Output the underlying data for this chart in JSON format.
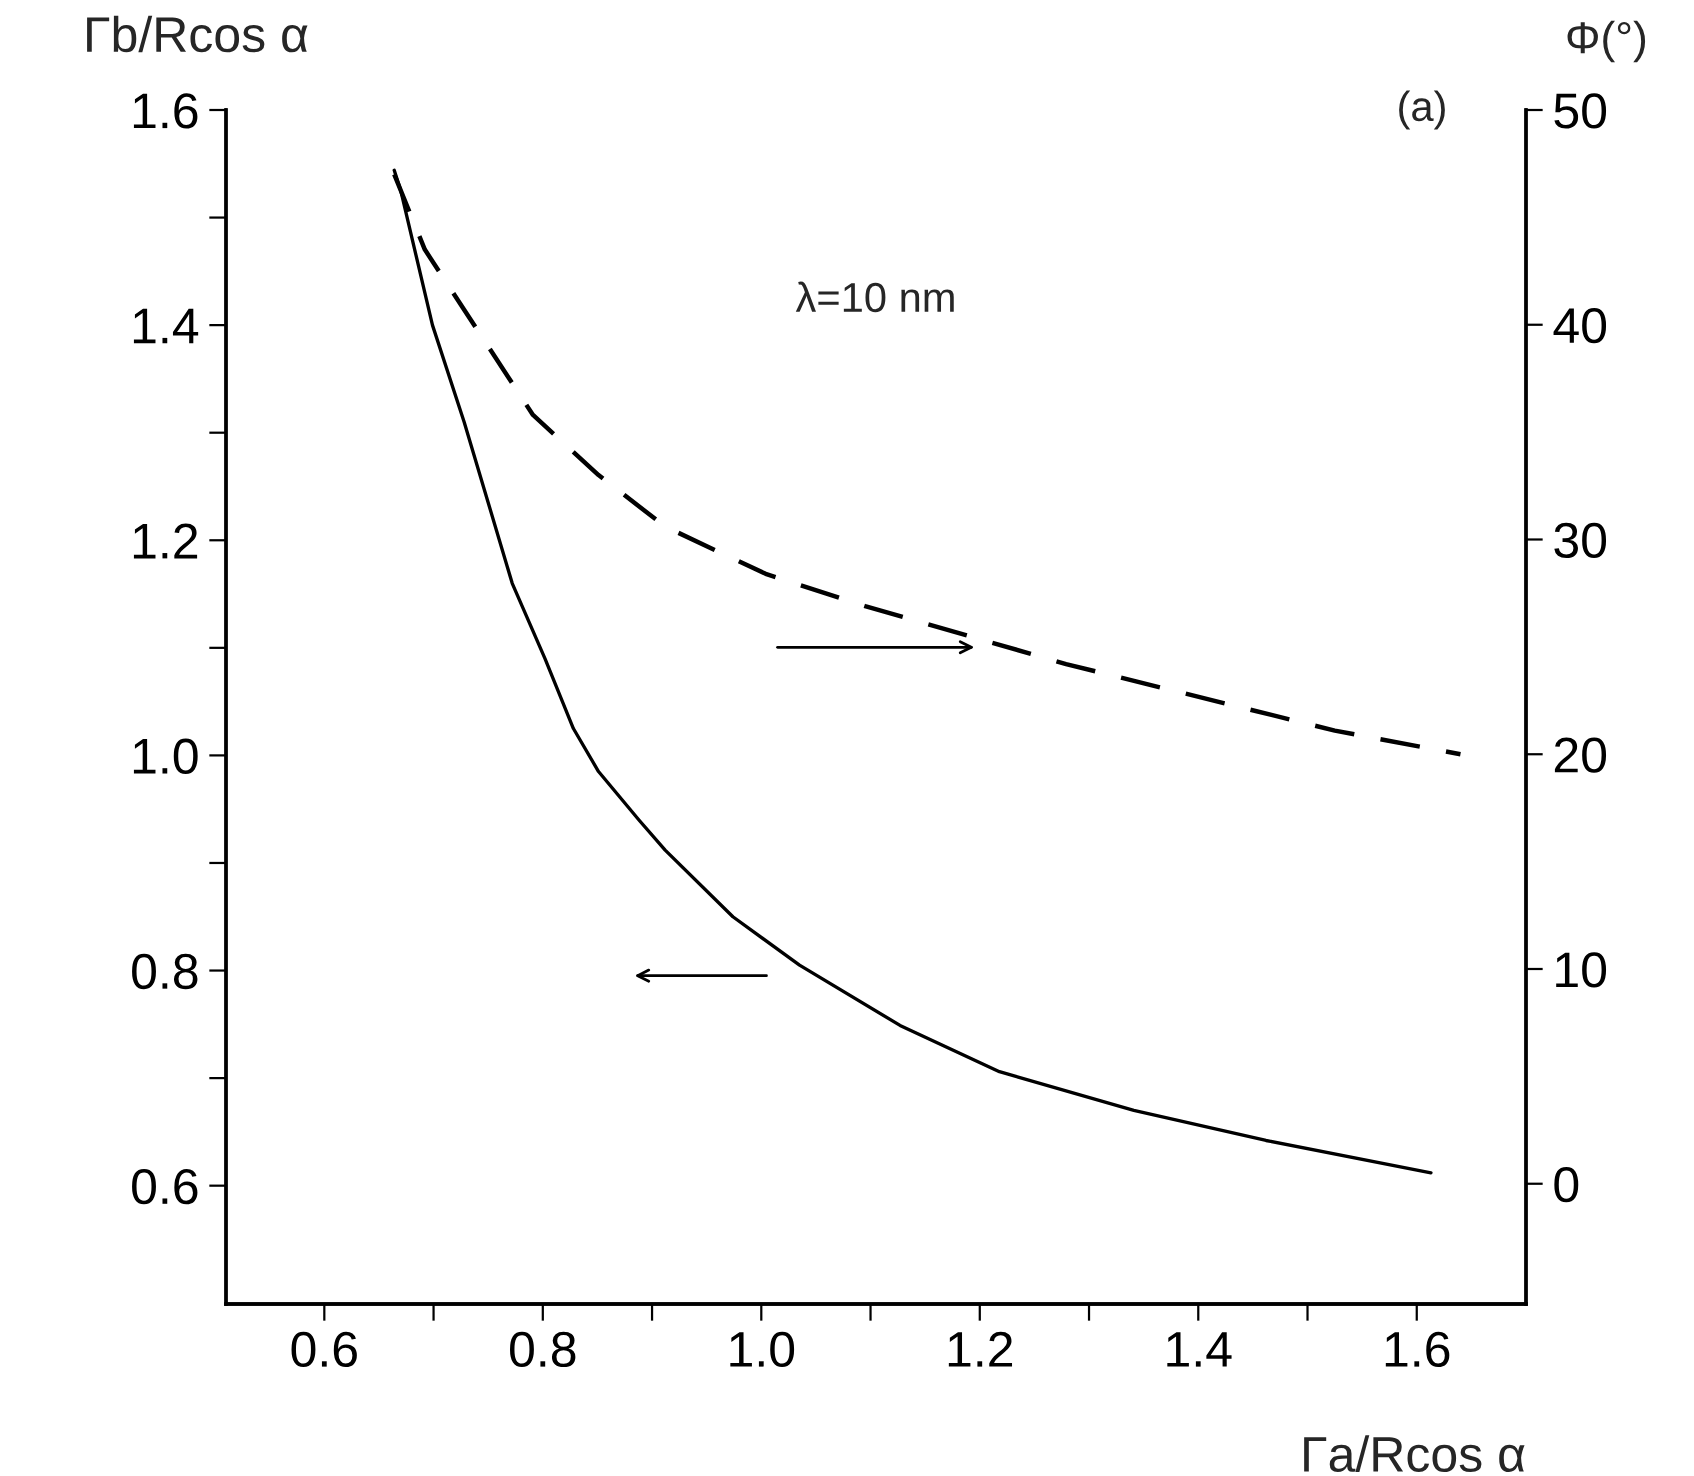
{
  "chart_data": {
    "type": "line",
    "xlabel": "Γa/Rcos α",
    "ylabel": "Γb/Rcos α",
    "y2label": "Φ(°)",
    "annotations": [
      "(a)",
      "λ=10 nm"
    ],
    "xlim": [
      0.51,
      1.7
    ],
    "ylim": [
      0.49,
      1.6
    ],
    "y2lim": [
      -5.6,
      50
    ],
    "xticks": [
      0.6,
      {
        "value": 0.7,
        "label": null
      },
      0.8,
      {
        "value": 0.9,
        "label": null
      },
      {
        "value": 1.0,
        "label": "1.0"
      },
      {
        "value": 1.1,
        "label": null
      },
      1.2,
      {
        "value": 1.3,
        "label": null
      },
      1.4,
      {
        "value": 1.5,
        "label": null
      },
      1.6
    ],
    "yticks": [
      0.6,
      {
        "value": 0.7,
        "label": null
      },
      0.8,
      {
        "value": 0.9,
        "label": null
      },
      {
        "value": 1.0,
        "label": "1.0"
      },
      {
        "value": 1.1,
        "label": null
      },
      1.2,
      {
        "value": 1.3,
        "label": null
      },
      1.4,
      {
        "value": 1.5,
        "label": null
      },
      1.6
    ],
    "y2ticks": [
      0,
      10,
      20,
      30,
      40,
      50
    ],
    "grid": false,
    "legend": false,
    "marker": "none",
    "series": [
      {
        "color": "#000000",
        "line_style": "solid",
        "x": [
          0.664,
          0.67,
          0.699,
          0.728,
          0.772,
          0.802,
          0.828,
          0.851,
          0.888,
          0.912,
          0.974,
          1.035,
          1.127,
          1.218,
          1.341,
          1.462,
          1.613
        ],
        "values": [
          1.544,
          1.525,
          1.4,
          1.31,
          1.16,
          1.09,
          1.025,
          0.985,
          0.94,
          0.912,
          0.85,
          0.805,
          0.749,
          0.706,
          0.67,
          0.642,
          0.612
        ]
      },
      {
        "color": "#000000",
        "line_style": "dashed",
        "axis": "y2",
        "x": [
          0.664,
          0.692,
          0.728,
          0.791,
          0.851,
          0.912,
          1.004,
          1.095,
          1.279,
          1.525,
          1.64
        ],
        "values": [
          47.0,
          43.5,
          40.7,
          35.8,
          33.0,
          30.6,
          28.4,
          26.9,
          24.2,
          21.1,
          20.0
        ]
      }
    ]
  }
}
